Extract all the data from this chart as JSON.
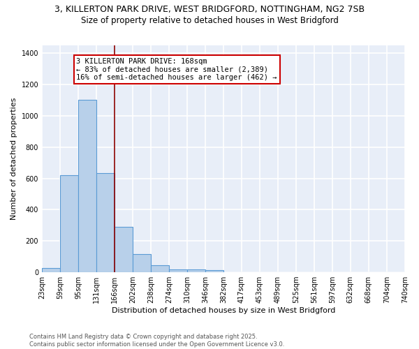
{
  "title_line1": "3, KILLERTON PARK DRIVE, WEST BRIDGFORD, NOTTINGHAM, NG2 7SB",
  "title_line2": "Size of property relative to detached houses in West Bridgford",
  "xlabel": "Distribution of detached houses by size in West Bridgford",
  "ylabel": "Number of detached properties",
  "bin_labels": [
    "23sqm",
    "59sqm",
    "95sqm",
    "131sqm",
    "166sqm",
    "202sqm",
    "238sqm",
    "274sqm",
    "310sqm",
    "346sqm",
    "382sqm",
    "417sqm",
    "453sqm",
    "489sqm",
    "525sqm",
    "561sqm",
    "597sqm",
    "632sqm",
    "668sqm",
    "704sqm",
    "740sqm"
  ],
  "bin_edges": [
    23,
    59,
    95,
    131,
    166,
    202,
    238,
    274,
    310,
    346,
    382,
    417,
    453,
    489,
    525,
    561,
    597,
    632,
    668,
    704,
    740
  ],
  "bar_heights": [
    28,
    620,
    1100,
    635,
    290,
    115,
    47,
    20,
    20,
    12,
    0,
    0,
    0,
    0,
    0,
    0,
    0,
    0,
    0,
    0
  ],
  "bar_color": "#b8d0ea",
  "bar_edge_color": "#5b9bd5",
  "property_line_x": 166,
  "annotation_text": "3 KILLERTON PARK DRIVE: 168sqm\n← 83% of detached houses are smaller (2,389)\n16% of semi-detached houses are larger (462) →",
  "annotation_box_color": "white",
  "annotation_box_edge_color": "#cc0000",
  "vline_color": "#8b0000",
  "background_color": "#e8eef8",
  "grid_color": "white",
  "ylim": [
    0,
    1450
  ],
  "yticks": [
    0,
    200,
    400,
    600,
    800,
    1000,
    1200,
    1400
  ],
  "footer_text": "Contains HM Land Registry data © Crown copyright and database right 2025.\nContains public sector information licensed under the Open Government Licence v3.0.",
  "title_fontsize": 9,
  "subtitle_fontsize": 8.5,
  "axis_label_fontsize": 8,
  "tick_fontsize": 7,
  "annotation_fontsize": 7.5
}
